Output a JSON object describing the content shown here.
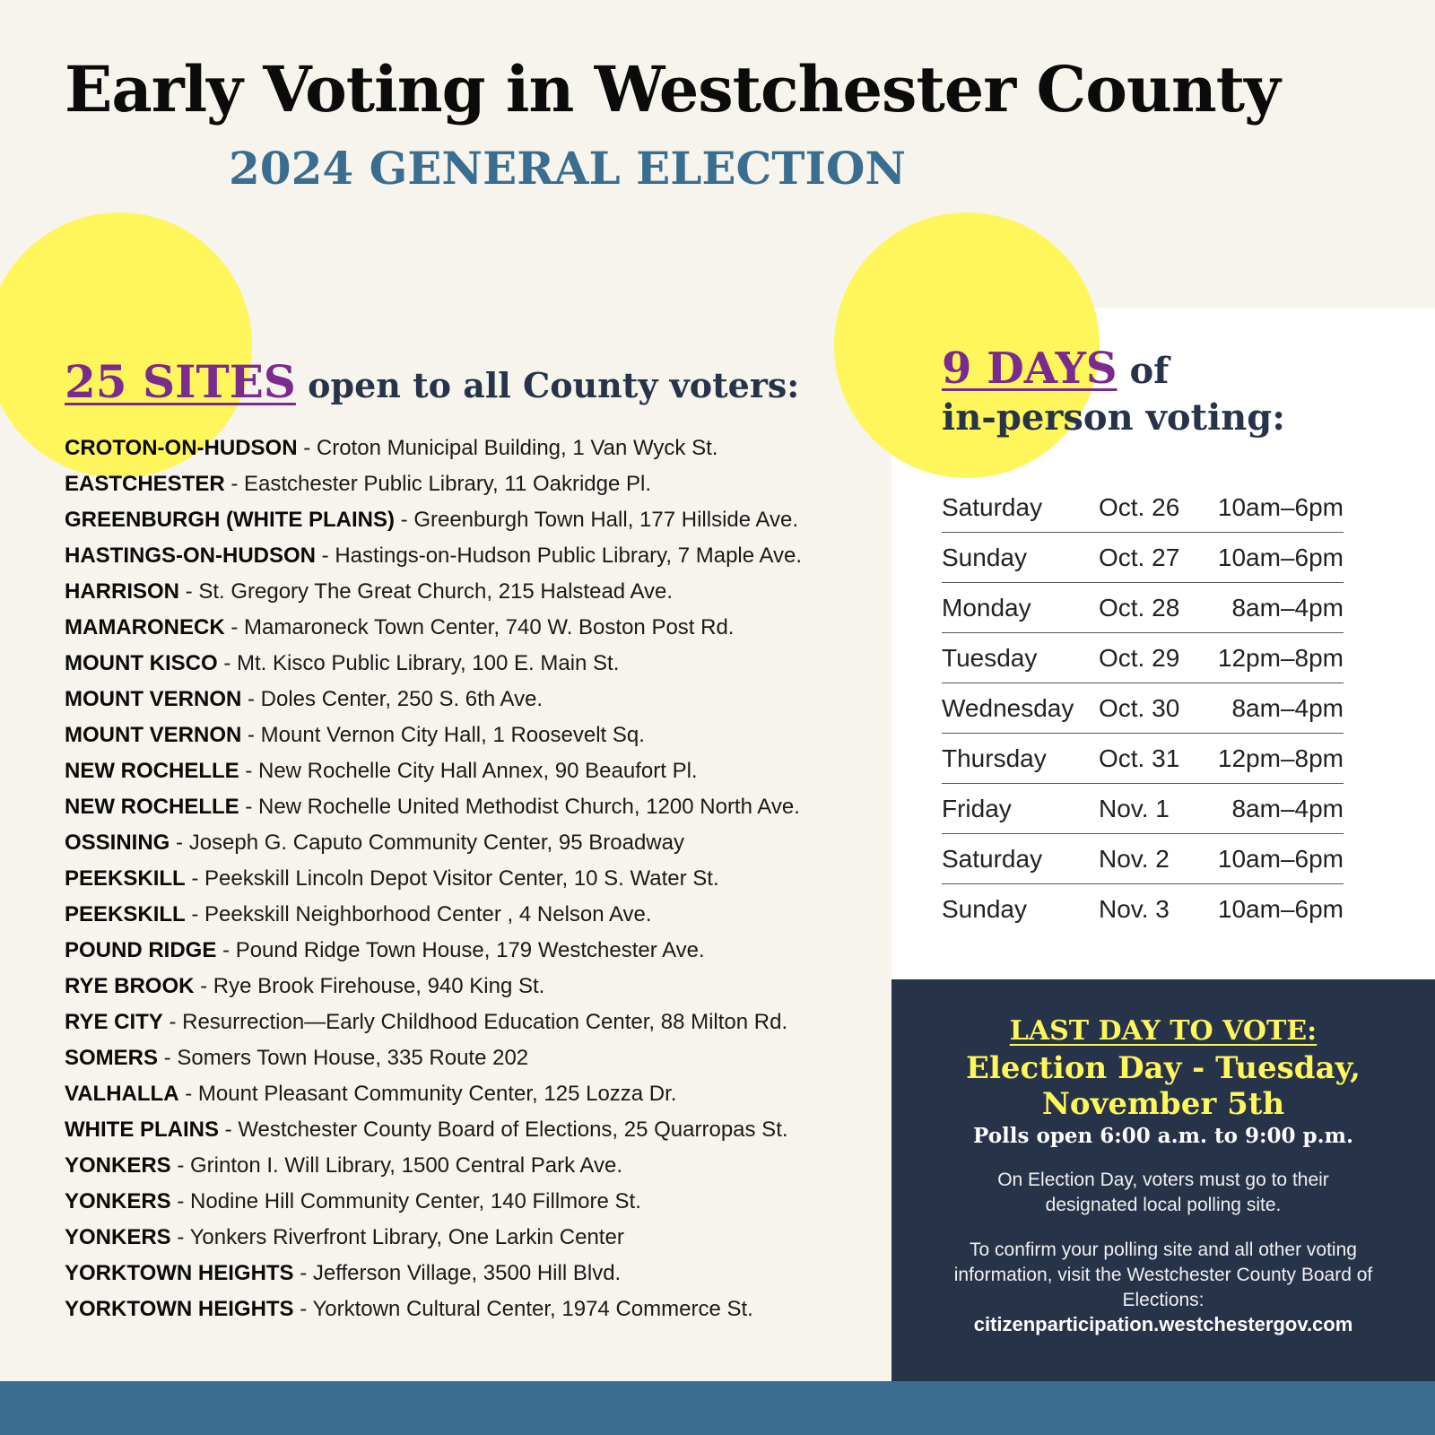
{
  "colors": {
    "background": "#f6f4ec",
    "yellow": "#fef65a",
    "navy": "#263349",
    "purple": "#7b2a8e",
    "blue": "#3a6d8f"
  },
  "title": "Early Voting in Westchester County",
  "subtitle": "2024 GENERAL ELECTION",
  "sites_heading": {
    "highlight": "25 SITES",
    "rest": "open to all County voters:"
  },
  "sites": [
    {
      "town": "CROTON-ON-HUDSON",
      "location": "Croton Municipal Building, 1 Van Wyck St."
    },
    {
      "town": "EASTCHESTER",
      "location": "Eastchester Public Library, 11 Oakridge Pl."
    },
    {
      "town": "GREENBURGH (WHITE PLAINS)",
      "location": "Greenburgh Town Hall, 177 Hillside Ave."
    },
    {
      "town": "HASTINGS-ON-HUDSON",
      "location": "Hastings-on-Hudson Public Library, 7 Maple Ave."
    },
    {
      "town": "HARRISON",
      "location": "St. Gregory The Great Church, 215 Halstead Ave."
    },
    {
      "town": "MAMARONECK",
      "location": "Mamaroneck Town Center, 740 W. Boston Post Rd."
    },
    {
      "town": "MOUNT KISCO",
      "location": "Mt. Kisco Public Library, 100 E. Main St."
    },
    {
      "town": "MOUNT VERNON",
      "location": "Doles Center, 250 S. 6th Ave."
    },
    {
      "town": "MOUNT VERNON",
      "location": "Mount Vernon City Hall, 1 Roosevelt Sq."
    },
    {
      "town": "NEW ROCHELLE",
      "location": "New Rochelle City Hall Annex, 90 Beaufort Pl."
    },
    {
      "town": "NEW ROCHELLE",
      "location": "New Rochelle United Methodist Church, 1200 North Ave."
    },
    {
      "town": "OSSINING",
      "location": "Joseph G. Caputo Community Center, 95 Broadway"
    },
    {
      "town": "PEEKSKILL",
      "location": "Peekskill Lincoln Depot Visitor Center, 10 S. Water St."
    },
    {
      "town": "PEEKSKILL",
      "location": "Peekskill Neighborhood Center , 4 Nelson Ave."
    },
    {
      "town": "POUND RIDGE",
      "location": "Pound Ridge Town House, 179 Westchester Ave."
    },
    {
      "town": "RYE BROOK",
      "location": "Rye Brook Firehouse, 940 King St."
    },
    {
      "town": "RYE CITY",
      "location": "Resurrection—Early Childhood Education Center, 88 Milton Rd."
    },
    {
      "town": "SOMERS",
      "location": "Somers Town House, 335 Route 202"
    },
    {
      "town": "VALHALLA",
      "location": "Mount Pleasant Community Center, 125 Lozza Dr."
    },
    {
      "town": "WHITE PLAINS",
      "location": "Westchester County Board of Elections, 25 Quarropas St."
    },
    {
      "town": "YONKERS",
      "location": "Grinton I. Will Library, 1500 Central Park Ave."
    },
    {
      "town": "YONKERS",
      "location": "Nodine Hill Community Center, 140 Fillmore St."
    },
    {
      "town": "YONKERS",
      "location": "Yonkers Riverfront Library, One Larkin Center"
    },
    {
      "town": "YORKTOWN HEIGHTS",
      "location": "Jefferson Village, 3500 Hill Blvd."
    },
    {
      "town": "YORKTOWN HEIGHTS",
      "location": "Yorktown Cultural Center, 1974 Commerce St."
    }
  ],
  "days_heading": {
    "highlight": "9 DAYS",
    "rest": "of",
    "line2": "in-person voting:"
  },
  "schedule": [
    {
      "day": "Saturday",
      "date": "Oct. 26",
      "hours": "10am–6pm"
    },
    {
      "day": "Sunday",
      "date": "Oct. 27",
      "hours": "10am–6pm"
    },
    {
      "day": "Monday",
      "date": "Oct. 28",
      "hours": "8am–4pm"
    },
    {
      "day": "Tuesday",
      "date": "Oct. 29",
      "hours": "12pm–8pm"
    },
    {
      "day": "Wednesday",
      "date": "Oct. 30",
      "hours": "8am–4pm"
    },
    {
      "day": "Thursday",
      "date": "Oct. 31",
      "hours": "12pm–8pm"
    },
    {
      "day": "Friday",
      "date": "Nov. 1",
      "hours": "8am–4pm"
    },
    {
      "day": "Saturday",
      "date": "Nov. 2",
      "hours": "10am–6pm"
    },
    {
      "day": "Sunday",
      "date": "Nov. 3",
      "hours": "10am–6pm"
    }
  ],
  "election_day": {
    "label": "LAST DAY TO VOTE:",
    "line1": "Election Day - Tuesday,",
    "line2": "November 5th",
    "polls": "Polls open 6:00 a.m. to 9:00 p.m.",
    "note": "On Election Day, voters must go to their designated local polling site.",
    "confirm": "To confirm your polling site and all other voting information, visit the Westchester County Board of Elections:",
    "url": "citizenparticipation.westchestergov.com"
  }
}
